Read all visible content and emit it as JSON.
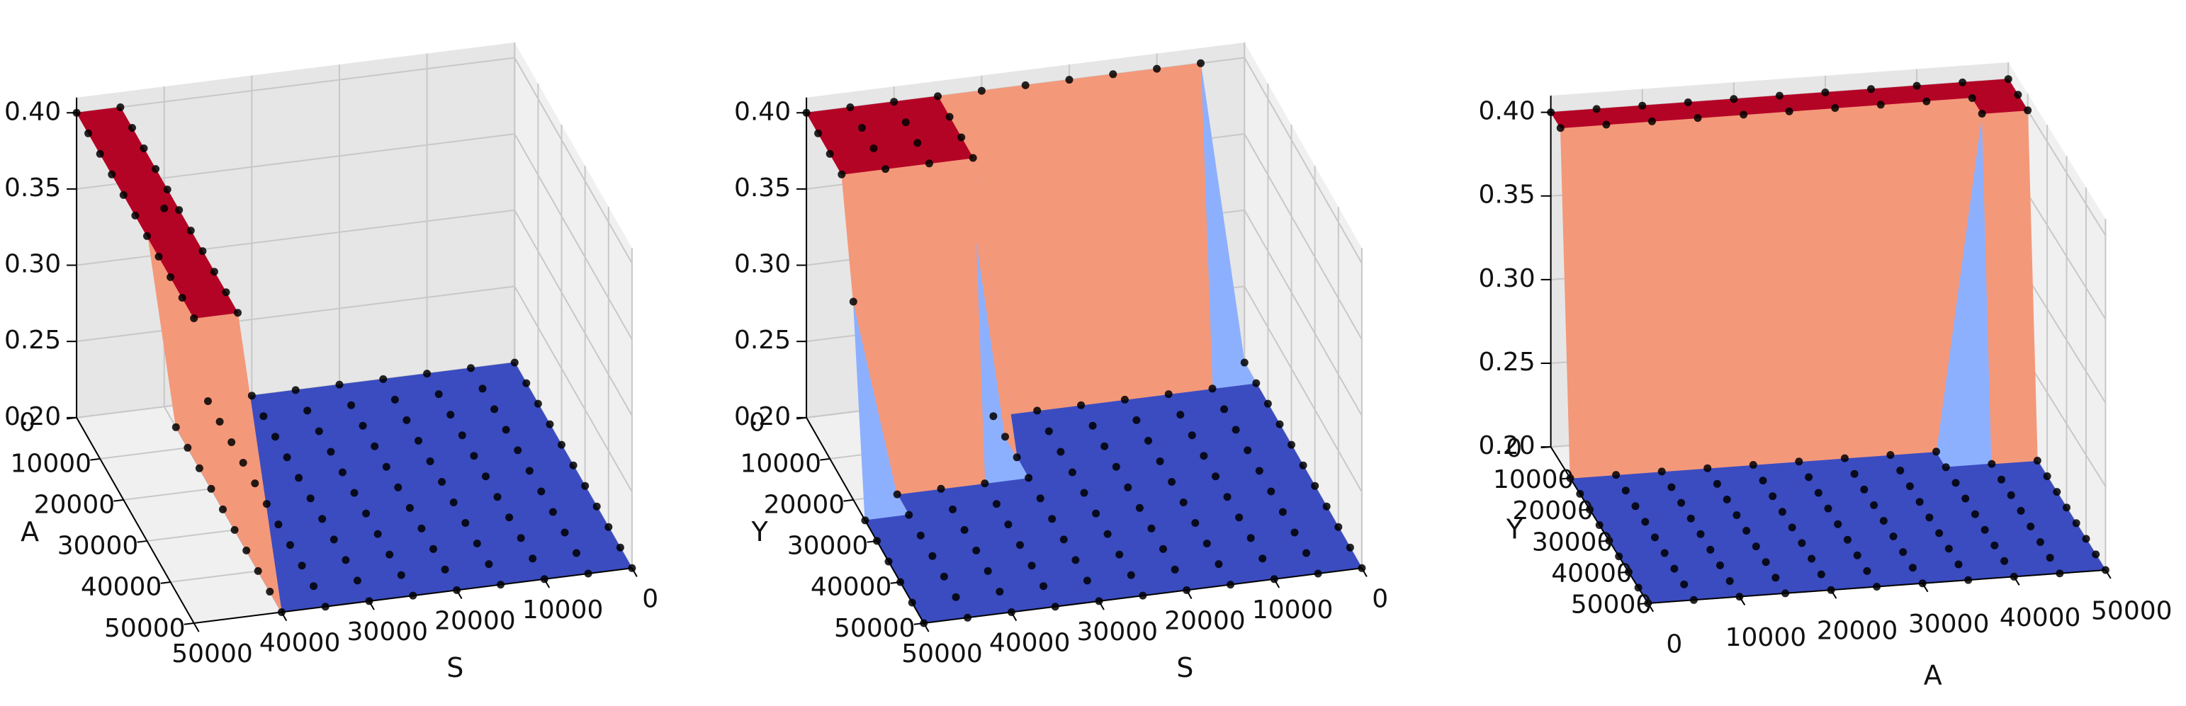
{
  "colors": {
    "pane": "#f0f0f0",
    "pane_side": "#e6e6e6",
    "grid": "#c8c8c8",
    "axis": "#000000",
    "high": "#b40426",
    "mid_high": "#f4987a",
    "mid": "#dddddd",
    "mid_low": "#8db0fe",
    "low": "#3b4cc0",
    "point": "#000000"
  },
  "chart_data": [
    {
      "type": "surface",
      "x_variable": "S",
      "y_variable": "A",
      "xlabel": "S",
      "ylabel": "A",
      "zlabel": "",
      "x_ticks": [
        "0",
        "10000",
        "20000",
        "30000",
        "40000",
        "50000"
      ],
      "y_ticks": [
        "0",
        "10000",
        "20000",
        "30000",
        "40000",
        "50000"
      ],
      "z_ticks": [
        "0.20",
        "0.25",
        "0.30",
        "0.35",
        "0.40"
      ],
      "xlim": [
        0,
        50000
      ],
      "ylim": [
        0,
        50000
      ],
      "zlim": [
        0.2,
        0.41
      ],
      "grid": true,
      "colormap": "coolwarm",
      "x": [
        0,
        5000,
        10000,
        15000,
        20000,
        25000,
        30000,
        35000,
        40000,
        45000,
        50000
      ],
      "y": [
        0,
        5000,
        10000,
        15000,
        20000,
        25000,
        30000,
        35000,
        40000,
        45000,
        50000
      ],
      "z_rule": "z = 0.40 for S >= 45000; z = 0.33 for S = 40000, A = 0; otherwise z = 0.20"
    },
    {
      "type": "surface",
      "x_variable": "S",
      "y_variable": "Y",
      "xlabel": "S",
      "ylabel": "Y",
      "zlabel": "",
      "x_ticks": [
        "0",
        "10000",
        "20000",
        "30000",
        "40000",
        "50000"
      ],
      "y_ticks": [
        "0",
        "10000",
        "20000",
        "30000",
        "40000",
        "50000"
      ],
      "z_ticks": [
        "0.20",
        "0.25",
        "0.30",
        "0.35",
        "0.40"
      ],
      "xlim": [
        0,
        50000
      ],
      "ylim": [
        0,
        50000
      ],
      "zlim": [
        0.2,
        0.41
      ],
      "grid": true,
      "colormap": "coolwarm",
      "x": [
        0,
        5000,
        10000,
        15000,
        20000,
        25000,
        30000,
        35000,
        40000,
        45000,
        50000
      ],
      "y": [
        0,
        5000,
        10000,
        15000,
        20000,
        25000,
        30000,
        35000,
        40000,
        45000,
        50000
      ],
      "z_rule": "z = 0.40 for Y = 0 (most S values); z = 0.40 for Y <= 15000 at S >= 35000; z = 0.33 at S = 50000, Y = 20000; otherwise z = 0.20"
    },
    {
      "type": "surface",
      "x_variable": "Y",
      "y_variable": "A",
      "xlabel": "Y",
      "ylabel": "A",
      "zlabel": "",
      "x_ticks": [
        "0",
        "10000",
        "20000",
        "30000",
        "40000",
        "50000"
      ],
      "y_ticks": [
        "0",
        "10000",
        "20000",
        "30000",
        "40000",
        "50000"
      ],
      "z_ticks": [
        "0.20",
        "0.25",
        "0.30",
        "0.35",
        "0.40"
      ],
      "xlim": [
        0,
        50000
      ],
      "ylim": [
        0,
        50000
      ],
      "zlim": [
        0.2,
        0.41
      ],
      "grid": true,
      "colormap": "coolwarm",
      "x": [
        0,
        5000,
        10000,
        15000,
        20000,
        25000,
        30000,
        35000,
        40000,
        45000,
        50000
      ],
      "y": [
        0,
        5000,
        10000,
        15000,
        20000,
        25000,
        30000,
        35000,
        40000,
        45000,
        50000
      ],
      "z_rule": "z = 0.40 for Y <= 5000; z = 0.40 for Y = 10000 at A >= 45000; otherwise z = 0.20"
    }
  ]
}
